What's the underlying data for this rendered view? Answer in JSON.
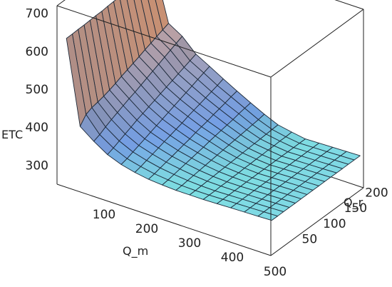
{
  "chart_data": {
    "type": "surface3d",
    "title": "",
    "zlabel": "ETC",
    "xlabel": "Q_m",
    "ylabel": "Q_r",
    "x_ticks": [
      "100",
      "200",
      "300",
      "400",
      "500"
    ],
    "y_ticks": [
      "50",
      "100",
      "150",
      "200"
    ],
    "z_ticks": [
      "300",
      "400",
      "500",
      "600",
      "700"
    ],
    "xlim": [
      0,
      500
    ],
    "ylim": [
      0,
      220
    ],
    "zlim": [
      250,
      720
    ],
    "x": [
      20,
      52,
      84,
      116,
      148,
      180,
      212,
      244,
      276,
      308,
      340,
      372,
      404,
      436,
      468,
      500
    ],
    "y": [
      2,
      16,
      30,
      44,
      58,
      72,
      86,
      100,
      114,
      128,
      142,
      156,
      170,
      184,
      198,
      212
    ],
    "values": [
      [
        640,
        640,
        641,
        641,
        642,
        643,
        643,
        645,
        646,
        647,
        648,
        649,
        650,
        651,
        652,
        653
      ],
      [
        420,
        440,
        447,
        450,
        454,
        459,
        465,
        472,
        478,
        484,
        490,
        497,
        503,
        509,
        515,
        521
      ],
      [
        393,
        399,
        408,
        416,
        423,
        430,
        437,
        443,
        450,
        457,
        464,
        471,
        478,
        485,
        492,
        499
      ],
      [
        370,
        376,
        383,
        390,
        397,
        404,
        410,
        416,
        422,
        428,
        434,
        440,
        446,
        452,
        458,
        464
      ],
      [
        356,
        360,
        366,
        372,
        378,
        384,
        390,
        396,
        402,
        408,
        414,
        420,
        426,
        432,
        438,
        444
      ],
      [
        347,
        351,
        356,
        361,
        366,
        371,
        376,
        381,
        386,
        392,
        397,
        402,
        407,
        412,
        417,
        423
      ],
      [
        341,
        344,
        348,
        352,
        356,
        360,
        364,
        368,
        373,
        377,
        381,
        386,
        390,
        394,
        399,
        403
      ],
      [
        338,
        340,
        343,
        346,
        349,
        352,
        355,
        358,
        362,
        365,
        368,
        371,
        374,
        378,
        381,
        384
      ],
      [
        336,
        337,
        339,
        341,
        343,
        345,
        347,
        349,
        351,
        353,
        355,
        357,
        359,
        361,
        363,
        366
      ],
      [
        336,
        336,
        337,
        338,
        339,
        340,
        341,
        342,
        343,
        344,
        345,
        346,
        347,
        348,
        349,
        350
      ],
      [
        336,
        336,
        336,
        337,
        337,
        338,
        338,
        339,
        339,
        340,
        340,
        341,
        341,
        342,
        342,
        343
      ],
      [
        337,
        337,
        337,
        337,
        337,
        337,
        337,
        337,
        337,
        337,
        337,
        337,
        337,
        337,
        337,
        337
      ],
      [
        338,
        338,
        338,
        338,
        338,
        338,
        338,
        338,
        338,
        338,
        338,
        338,
        338,
        338,
        338,
        338
      ],
      [
        339,
        339,
        339,
        339,
        339,
        339,
        339,
        339,
        339,
        339,
        339,
        339,
        339,
        339,
        339,
        339
      ],
      [
        340,
        340,
        340,
        340,
        340,
        340,
        340,
        340,
        340,
        340,
        340,
        340,
        340,
        340,
        340,
        340
      ],
      [
        341,
        341,
        341,
        341,
        341,
        341,
        341,
        341,
        341,
        341,
        341,
        341,
        341,
        341,
        341,
        341
      ]
    ],
    "grid": false,
    "legend": "none",
    "colors": {
      "low": "#7fe6e0",
      "mid": "#7aa6ee",
      "high": "#f7b08a",
      "mesh": "#1d2a3a",
      "box": "#222222"
    }
  }
}
